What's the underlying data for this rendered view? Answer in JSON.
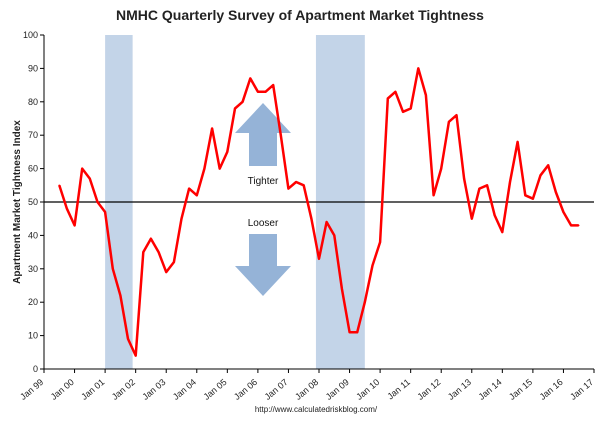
{
  "chart_data": {
    "type": "line",
    "title": "NMHC Quarterly Survey of Apartment Market Tightness",
    "ylabel": "Apartment Market Tightness Index",
    "xlabel": "",
    "ylim": [
      0,
      100
    ],
    "yticks": [
      0,
      10,
      20,
      30,
      40,
      50,
      60,
      70,
      80,
      90,
      100
    ],
    "xlim": [
      1999,
      2017
    ],
    "xtick_labels": [
      "Jan 99",
      "Jan 00",
      "Jan 01",
      "Jan 02",
      "Jan 03",
      "Jan 04",
      "Jan 05",
      "Jan 06",
      "Jan 07",
      "Jan 08",
      "Jan 09",
      "Jan 10",
      "Jan 11",
      "Jan 12",
      "Jan 13",
      "Jan 14",
      "Jan 15",
      "Jan 16",
      "Jan 17"
    ],
    "reference_line": 50,
    "recessions": [
      [
        2001.0,
        2001.9
      ],
      [
        2007.9,
        2009.5
      ]
    ],
    "annotations": {
      "tighter": "Tighter",
      "looser": "Looser"
    },
    "colors": {
      "line": "#ff0000",
      "recession": "#b8cce4",
      "arrow": "#95b3d7"
    },
    "series": [
      {
        "x": [
          1999.5,
          1999.75,
          2000.0,
          2000.25,
          2000.5,
          2000.75,
          2001.0,
          2001.25,
          2001.5,
          2001.75,
          2002.0,
          2002.25,
          2002.5,
          2002.75,
          2003.0,
          2003.25,
          2003.5,
          2003.75,
          2004.0,
          2004.25,
          2004.5,
          2004.75,
          2005.0,
          2005.25,
          2005.5,
          2005.75,
          2006.0,
          2006.25,
          2006.5,
          2006.75,
          2007.0,
          2007.25,
          2007.5,
          2007.75,
          2008.0,
          2008.25,
          2008.5,
          2008.75,
          2009.0,
          2009.25,
          2009.5,
          2009.75,
          2010.0,
          2010.25,
          2010.5,
          2010.75,
          2011.0,
          2011.25,
          2011.5,
          2011.75,
          2012.0,
          2012.25,
          2012.5,
          2012.75,
          2013.0,
          2013.25,
          2013.5,
          2013.75,
          2014.0,
          2014.25,
          2014.5,
          2014.75,
          2015.0,
          2015.25,
          2015.5,
          2015.75,
          2016.0,
          2016.25,
          2016.5
        ],
        "values": [
          55,
          48,
          43,
          60,
          57,
          50,
          47,
          30,
          22,
          9,
          4,
          35,
          39,
          35,
          29,
          32,
          45,
          54,
          52,
          60,
          72,
          60,
          65,
          78,
          80,
          87,
          83,
          83,
          85,
          70,
          54,
          56,
          55,
          45,
          33,
          44,
          40,
          24,
          11,
          11,
          20,
          31,
          38,
          81,
          83,
          77,
          78,
          90,
          82,
          52,
          60,
          74,
          76,
          57,
          45,
          54,
          55,
          46,
          41,
          56,
          68,
          52,
          51,
          58,
          61,
          53,
          47,
          43,
          43
        ]
      }
    ]
  },
  "source": "http://www.calculatedriskblog.com/"
}
